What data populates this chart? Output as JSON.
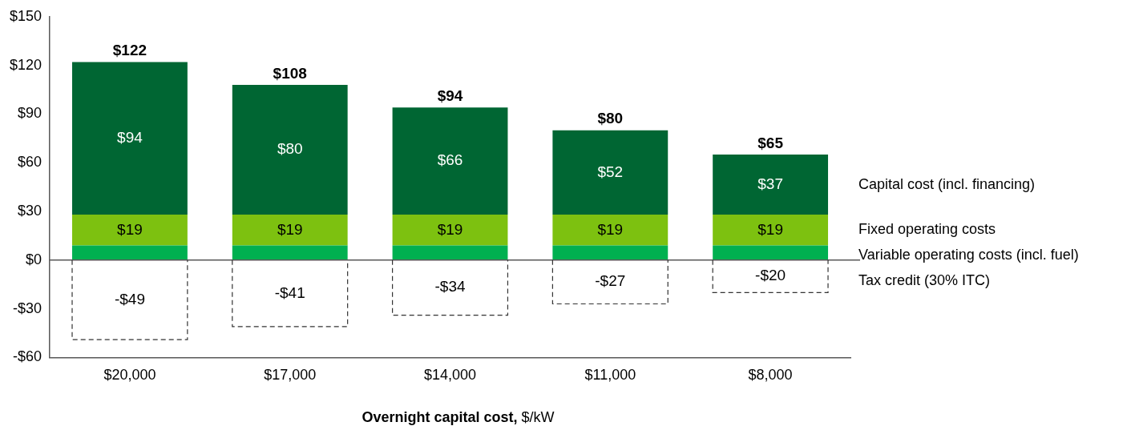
{
  "chart_data": {
    "type": "bar",
    "stacked": true,
    "xlabel": "Overnight capital cost, $/kW",
    "categories": [
      "$20,000",
      "$17,000",
      "$14,000",
      "$11,000",
      "$8,000"
    ],
    "series": [
      {
        "name": "Variable operating costs (incl. fuel)",
        "color": "#00b050",
        "values": [
          9,
          9,
          9,
          9,
          9
        ],
        "value_labels": [
          null,
          null,
          null,
          null,
          null
        ]
      },
      {
        "name": "Fixed operating costs",
        "color": "#7dc110",
        "values": [
          19,
          19,
          19,
          19,
          19
        ],
        "value_labels": [
          "$19",
          "$19",
          "$19",
          "$19",
          "$19"
        ]
      },
      {
        "name": "Capital cost (incl. financing)",
        "color": "#006633",
        "values": [
          94,
          80,
          66,
          52,
          37
        ],
        "value_labels": [
          "$94",
          "$80",
          "$66",
          "$52",
          "$37"
        ]
      },
      {
        "name": "Tax credit (30% ITC)",
        "color": "#ffffff",
        "line_style": "dashed",
        "values": [
          -49,
          -41,
          -34,
          -27,
          -20
        ],
        "value_labels": [
          "-$49",
          "-$41",
          "-$34",
          "-$27",
          "-$20"
        ]
      }
    ],
    "annotations": [
      {
        "text": "$122",
        "x": "$20,000",
        "y": 122
      },
      {
        "text": "$108",
        "x": "$17,000",
        "y": 108
      },
      {
        "text": "$94",
        "x": "$14,000",
        "y": 94
      },
      {
        "text": "$80",
        "x": "$11,000",
        "y": 80
      },
      {
        "text": "$65",
        "x": "$8,000",
        "y": 65
      }
    ],
    "ylim": [
      -60,
      150
    ],
    "yticks": [
      {
        "value": -60,
        "label": "-$60"
      },
      {
        "value": -30,
        "label": "-$30"
      },
      {
        "value": 0,
        "label": "$0"
      },
      {
        "value": 30,
        "label": "$30"
      },
      {
        "value": 60,
        "label": "$60"
      },
      {
        "value": 90,
        "label": "$90"
      },
      {
        "value": 120,
        "label": "$120"
      },
      {
        "value": 150,
        "label": "$150"
      }
    ],
    "legend": "right"
  }
}
